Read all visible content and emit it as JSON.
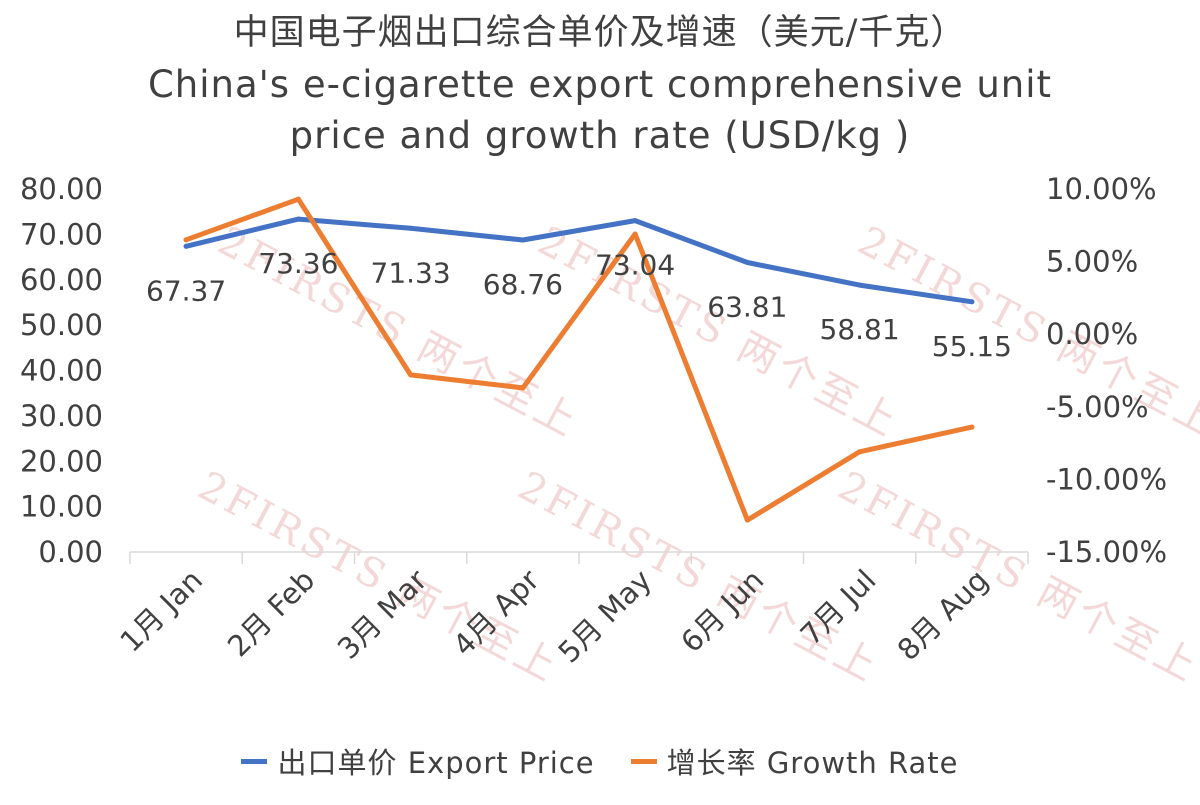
{
  "chart_data": {
    "type": "line",
    "title_cn": "中国电子烟出口综合单价及增速（美元/千克）",
    "title_en_line1": "China's e-cigarette export comprehensive unit",
    "title_en_line2": "price and growth rate (USD/kg )",
    "categories": [
      "1月 Jan",
      "2月 Feb",
      "3月 Mar",
      "4月 Apr",
      "5月 May",
      "6月 Jun",
      "7月 Jul",
      "8月 Aug"
    ],
    "y_left_ticks": [
      "0.00",
      "10.00",
      "20.00",
      "30.00",
      "40.00",
      "50.00",
      "60.00",
      "70.00",
      "80.00"
    ],
    "y_right_ticks": [
      "-15.00%",
      "-10.00%",
      "-5.00%",
      "0.00%",
      "5.00%",
      "10.00%"
    ],
    "y_left_range": [
      0,
      80
    ],
    "y_right_range": [
      -15,
      10
    ],
    "series": [
      {
        "name": "出口单价 Export Price",
        "axis": "left",
        "color": "#4472C4",
        "values": [
          67.37,
          73.36,
          71.33,
          68.76,
          73.04,
          63.81,
          58.81,
          55.15
        ],
        "labels": [
          "67.37",
          "73.36",
          "71.33",
          "68.76",
          "73.04",
          "63.81",
          "58.81",
          "55.15"
        ]
      },
      {
        "name": "增长率 Growth Rate",
        "axis": "right",
        "color": "#ED7D31",
        "values": [
          6.5,
          9.3,
          -2.8,
          -3.7,
          6.9,
          -12.8,
          -8.1,
          -6.4
        ]
      }
    ],
    "watermark": "2FIRSTS 两个至上",
    "grid": false,
    "legend_position": "bottom"
  }
}
